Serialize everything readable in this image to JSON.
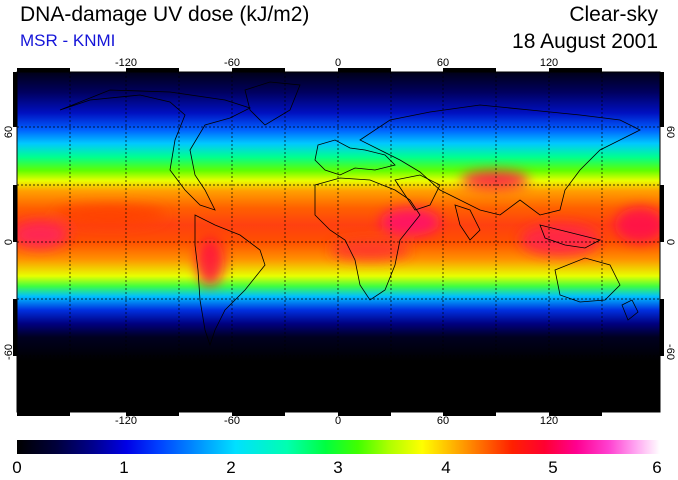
{
  "header": {
    "title": "DNA-damage UV dose (kJ/m2)",
    "subtitle": "MSR - KNMI",
    "mode": "Clear-sky",
    "date": "18 August 2001"
  },
  "map": {
    "projection": "equirectangular",
    "lon_range": [
      -180,
      180
    ],
    "lat_range": [
      -90,
      90
    ],
    "grid": "dashed every 30 degrees",
    "lon_ticks": [
      "-120",
      "-60",
      "0",
      "60",
      "120"
    ],
    "lat_ticks": [
      "60",
      "0",
      "-60"
    ],
    "lat_ticks_right": [
      "60",
      "0",
      "-60"
    ]
  },
  "colorbar": {
    "labels": [
      "0",
      "1",
      "2",
      "3",
      "4",
      "5",
      "6"
    ],
    "min": 0,
    "max": 6
  },
  "colors": {
    "subtitle": "#1515d8",
    "low": "#000000",
    "high": "#ffffff"
  }
}
